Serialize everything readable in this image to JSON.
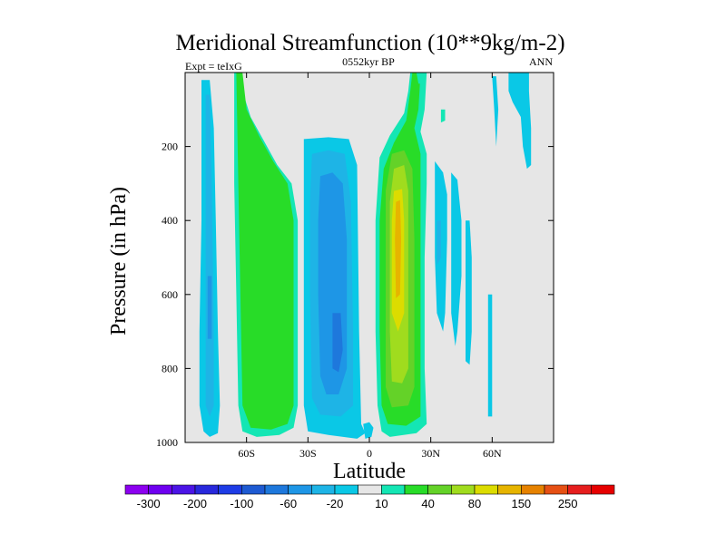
{
  "chart_data": {
    "type": "heatmap",
    "title": "Meridional Streamfunction (10**9kg/m-2)",
    "left_label": "Expt = teIxG",
    "center_label": "0552kyr BP",
    "right_label": "ANN",
    "xlabel": "Latitude",
    "ylabel": "Pressure (in hPa)",
    "xlim": [
      -90,
      90
    ],
    "ylim": [
      1000,
      0
    ],
    "x_ticks": [
      -60,
      -30,
      0,
      30,
      60
    ],
    "x_tick_labels": [
      "60S",
      "30S",
      "0",
      "30N",
      "60N"
    ],
    "y_ticks": [
      200,
      400,
      600,
      800,
      1000
    ],
    "y_tick_labels": [
      "200",
      "400",
      "600",
      "800",
      "1000"
    ],
    "background_color": "#e6e6e6",
    "colorbar": {
      "levels": [
        -300,
        -250,
        -200,
        -150,
        -100,
        -80,
        -60,
        -40,
        -20,
        -10,
        10,
        20,
        40,
        60,
        80,
        100,
        150,
        200,
        250,
        300
      ],
      "colors": [
        "#8c00f0",
        "#6e00f0",
        "#4b14e6",
        "#2828dc",
        "#1e3ce6",
        "#1e5ad2",
        "#1e78dc",
        "#1e96e6",
        "#1eb4e6",
        "#0ac8e6",
        "#e6e6e6",
        "#14e6b4",
        "#28dc28",
        "#64d228",
        "#a0dc1e",
        "#dcdc00",
        "#e6b400",
        "#e68200",
        "#e65014",
        "#e61e1e",
        "#e60000"
      ],
      "labels": [
        {
          "value": -300,
          "text": "-300"
        },
        {
          "value": -200,
          "text": "-200"
        },
        {
          "value": -100,
          "text": "-100"
        },
        {
          "value": -60,
          "text": "-60"
        },
        {
          "value": -20,
          "text": "-20"
        },
        {
          "value": 10,
          "text": "10"
        },
        {
          "value": 40,
          "text": "40"
        },
        {
          "value": 80,
          "text": "80"
        },
        {
          "value": 150,
          "text": "150"
        },
        {
          "value": 250,
          "text": "250"
        }
      ]
    },
    "regions": [
      {
        "level": -20,
        "color": "#0ac8e6",
        "outline": [
          [
            -82,
            20
          ],
          [
            -78,
            20
          ],
          [
            -76,
            150
          ],
          [
            -75,
            400
          ],
          [
            -74,
            700
          ],
          [
            -73,
            900
          ],
          [
            -74,
            975
          ],
          [
            -78,
            985
          ],
          [
            -81,
            970
          ],
          [
            -83,
            900
          ],
          [
            -83,
            700
          ],
          [
            -82,
            400
          ]
        ]
      },
      {
        "level": -40,
        "color": "#1eb4e6",
        "outline": [
          [
            -80,
            60
          ],
          [
            -78,
            60
          ],
          [
            -77,
            300
          ],
          [
            -76,
            700
          ],
          [
            -76,
            900
          ],
          [
            -78,
            930
          ],
          [
            -80,
            900
          ],
          [
            -80,
            600
          ]
        ]
      },
      {
        "level": -60,
        "color": "#1e96e6",
        "outline": [
          [
            -79,
            550
          ],
          [
            -77,
            550
          ],
          [
            -77,
            720
          ],
          [
            -79,
            720
          ]
        ]
      },
      {
        "level": 20,
        "color": "#14e6b4",
        "outline": [
          [
            -66,
            0
          ],
          [
            -63,
            0
          ],
          [
            -62,
            50
          ],
          [
            -58,
            120
          ],
          [
            -52,
            180
          ],
          [
            -45,
            250
          ],
          [
            -38,
            300
          ],
          [
            -35,
            400
          ],
          [
            -35,
            900
          ],
          [
            -37,
            960
          ],
          [
            -44,
            980
          ],
          [
            -55,
            985
          ],
          [
            -62,
            970
          ],
          [
            -64,
            900
          ],
          [
            -65,
            600
          ],
          [
            -66,
            300
          ]
        ]
      },
      {
        "level": 40,
        "color": "#28dc28",
        "outline": [
          [
            -65,
            0
          ],
          [
            -62,
            0
          ],
          [
            -60,
            100
          ],
          [
            -54,
            170
          ],
          [
            -47,
            240
          ],
          [
            -40,
            300
          ],
          [
            -37,
            400
          ],
          [
            -37,
            900
          ],
          [
            -40,
            950
          ],
          [
            -48,
            965
          ],
          [
            -58,
            960
          ],
          [
            -62,
            900
          ],
          [
            -63,
            600
          ],
          [
            -64,
            300
          ]
        ]
      },
      {
        "level": -20,
        "color": "#0ac8e6",
        "outline": [
          [
            -32,
            180
          ],
          [
            -20,
            175
          ],
          [
            -10,
            180
          ],
          [
            -6,
            250
          ],
          [
            -5,
            700
          ],
          [
            -4,
            950
          ],
          [
            -2,
            975
          ],
          [
            -6,
            990
          ],
          [
            -20,
            980
          ],
          [
            -30,
            970
          ],
          [
            -32,
            900
          ],
          [
            -32,
            600
          ],
          [
            -32,
            300
          ]
        ]
      },
      {
        "level": -40,
        "color": "#1eb4e6",
        "outline": [
          [
            -28,
            220
          ],
          [
            -20,
            210
          ],
          [
            -12,
            220
          ],
          [
            -9,
            350
          ],
          [
            -8,
            700
          ],
          [
            -8,
            900
          ],
          [
            -14,
            930
          ],
          [
            -24,
            925
          ],
          [
            -28,
            880
          ],
          [
            -29,
            600
          ],
          [
            -29,
            350
          ]
        ]
      },
      {
        "level": -60,
        "color": "#1e96e6",
        "outline": [
          [
            -24,
            280
          ],
          [
            -18,
            270
          ],
          [
            -13,
            300
          ],
          [
            -11,
            450
          ],
          [
            -11,
            800
          ],
          [
            -15,
            870
          ],
          [
            -21,
            870
          ],
          [
            -24,
            820
          ],
          [
            -25,
            600
          ],
          [
            -25,
            400
          ]
        ]
      },
      {
        "level": -80,
        "color": "#1e78dc",
        "outline": [
          [
            -18,
            650
          ],
          [
            -14,
            650
          ],
          [
            -13,
            750
          ],
          [
            -15,
            810
          ],
          [
            -18,
            800
          ]
        ]
      },
      {
        "level": 20,
        "color": "#14e6b4",
        "outline": [
          [
            20,
            0
          ],
          [
            28,
            0
          ],
          [
            27,
            100
          ],
          [
            25,
            160
          ],
          [
            28,
            220
          ],
          [
            28,
            300
          ],
          [
            27,
            500
          ],
          [
            27,
            800
          ],
          [
            28,
            950
          ],
          [
            23,
            975
          ],
          [
            10,
            985
          ],
          [
            6,
            970
          ],
          [
            4,
            900
          ],
          [
            3,
            700
          ],
          [
            3,
            400
          ],
          [
            5,
            230
          ],
          [
            10,
            170
          ],
          [
            17,
            110
          ],
          [
            19,
            50
          ]
        ]
      },
      {
        "level": 40,
        "color": "#28dc28",
        "outline": [
          [
            21,
            0
          ],
          [
            25,
            0
          ],
          [
            24,
            100
          ],
          [
            22,
            150
          ],
          [
            25,
            220
          ],
          [
            25,
            400
          ],
          [
            25,
            800
          ],
          [
            25,
            930
          ],
          [
            18,
            955
          ],
          [
            9,
            950
          ],
          [
            6,
            900
          ],
          [
            5,
            700
          ],
          [
            5,
            400
          ],
          [
            7,
            260
          ],
          [
            12,
            190
          ],
          [
            18,
            130
          ],
          [
            20,
            50
          ]
        ]
      },
      {
        "level": 60,
        "color": "#64d228",
        "outline": [
          [
            11,
            220
          ],
          [
            17,
            210
          ],
          [
            21,
            260
          ],
          [
            22,
            450
          ],
          [
            22,
            850
          ],
          [
            19,
            900
          ],
          [
            11,
            905
          ],
          [
            8,
            850
          ],
          [
            8,
            600
          ],
          [
            8,
            320
          ]
        ]
      },
      {
        "level": 80,
        "color": "#a0dc1e",
        "outline": [
          [
            12,
            260
          ],
          [
            17,
            250
          ],
          [
            19,
            320
          ],
          [
            19,
            600
          ],
          [
            19,
            800
          ],
          [
            16,
            840
          ],
          [
            11,
            835
          ],
          [
            10,
            700
          ],
          [
            10,
            350
          ]
        ]
      },
      {
        "level": 100,
        "color": "#dcdc00",
        "outline": [
          [
            12,
            320
          ],
          [
            16,
            315
          ],
          [
            17,
            400
          ],
          [
            17,
            650
          ],
          [
            14,
            700
          ],
          [
            11,
            650
          ],
          [
            11,
            400
          ]
        ]
      },
      {
        "level": 150,
        "color": "#e6b400",
        "outline": [
          [
            13,
            350
          ],
          [
            15,
            345
          ],
          [
            15.5,
            450
          ],
          [
            15,
            600
          ],
          [
            13,
            610
          ],
          [
            12.5,
            450
          ]
        ]
      },
      {
        "level": 20,
        "color": "#14e6b4",
        "outline": [
          [
            35,
            100
          ],
          [
            37,
            100
          ],
          [
            37,
            130
          ],
          [
            35,
            135
          ]
        ]
      },
      {
        "level": -20,
        "color": "#0ac8e6",
        "outline": [
          [
            32,
            240
          ],
          [
            36,
            270
          ],
          [
            38,
            330
          ],
          [
            38,
            450
          ],
          [
            37,
            650
          ],
          [
            36,
            700
          ],
          [
            33,
            650
          ],
          [
            32,
            500
          ]
        ]
      },
      {
        "level": -40,
        "color": "#1eb4e6",
        "outline": [
          [
            33,
            400
          ],
          [
            35,
            400
          ],
          [
            35,
            500
          ],
          [
            33,
            520
          ]
        ]
      },
      {
        "level": -20,
        "color": "#0ac8e6",
        "outline": [
          [
            40,
            270
          ],
          [
            43,
            290
          ],
          [
            45,
            400
          ],
          [
            45,
            550
          ],
          [
            43,
            700
          ],
          [
            42,
            740
          ],
          [
            40,
            650
          ],
          [
            40,
            450
          ]
        ]
      },
      {
        "level": -20,
        "color": "#0ac8e6",
        "outline": [
          [
            47,
            400
          ],
          [
            49,
            400
          ],
          [
            50,
            500
          ],
          [
            50,
            700
          ],
          [
            49,
            790
          ],
          [
            47,
            780
          ],
          [
            47,
            550
          ]
        ]
      },
      {
        "level": -20,
        "color": "#0ac8e6",
        "outline": [
          [
            60,
            10
          ],
          [
            62,
            10
          ],
          [
            63,
            100
          ],
          [
            62,
            200
          ],
          [
            61,
            100
          ]
        ]
      },
      {
        "level": -20,
        "color": "#0ac8e6",
        "outline": [
          [
            58,
            600
          ],
          [
            60,
            600
          ],
          [
            60,
            800
          ],
          [
            60,
            930
          ],
          [
            58,
            930
          ],
          [
            58,
            800
          ]
        ]
      },
      {
        "level": -20,
        "color": "#0ac8e6",
        "outline": [
          [
            68,
            0
          ],
          [
            78,
            0
          ],
          [
            78,
            50
          ],
          [
            79,
            150
          ],
          [
            79,
            250
          ],
          [
            77,
            260
          ],
          [
            75,
            200
          ],
          [
            74,
            120
          ],
          [
            70,
            80
          ],
          [
            68,
            50
          ]
        ]
      },
      {
        "level": 20,
        "color": "#14e6b4",
        "outline": [
          [
            23,
            0
          ],
          [
            27,
            0
          ],
          [
            26,
            30
          ],
          [
            24,
            30
          ]
        ]
      },
      {
        "level": -20,
        "color": "#0ac8e6",
        "outline": [
          [
            -3,
            950
          ],
          [
            0,
            945
          ],
          [
            2,
            960
          ],
          [
            1,
            985
          ],
          [
            -2,
            990
          ]
        ]
      }
    ]
  }
}
